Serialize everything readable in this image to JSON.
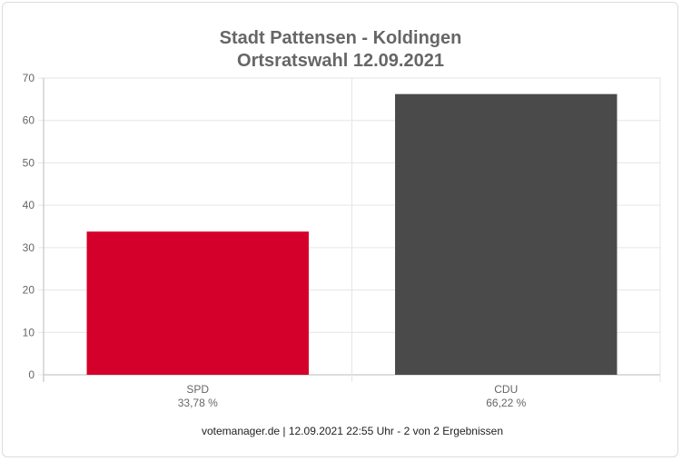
{
  "chart_data": {
    "type": "bar",
    "title": "Stadt Pattensen - Koldingen",
    "subtitle": "Ortsratswahl 12.09.2021",
    "categories": [
      "SPD",
      "CDU"
    ],
    "category_labels": [
      "33,78 %",
      "66,22 %"
    ],
    "values": [
      33.78,
      66.22
    ],
    "colors": [
      "#d4002b",
      "#4a4a4a"
    ],
    "ylim": [
      0,
      70
    ],
    "yticks": [
      0,
      10,
      20,
      30,
      40,
      50,
      60,
      70
    ],
    "grid": true,
    "legend": "none"
  },
  "footer": "votemanager.de | 12.09.2021 22:55 Uhr - 2 von 2 Ergebnissen",
  "colors": {
    "gridline": "#e6e6e6",
    "axis": "#bbbbbb",
    "text": "#666666"
  }
}
